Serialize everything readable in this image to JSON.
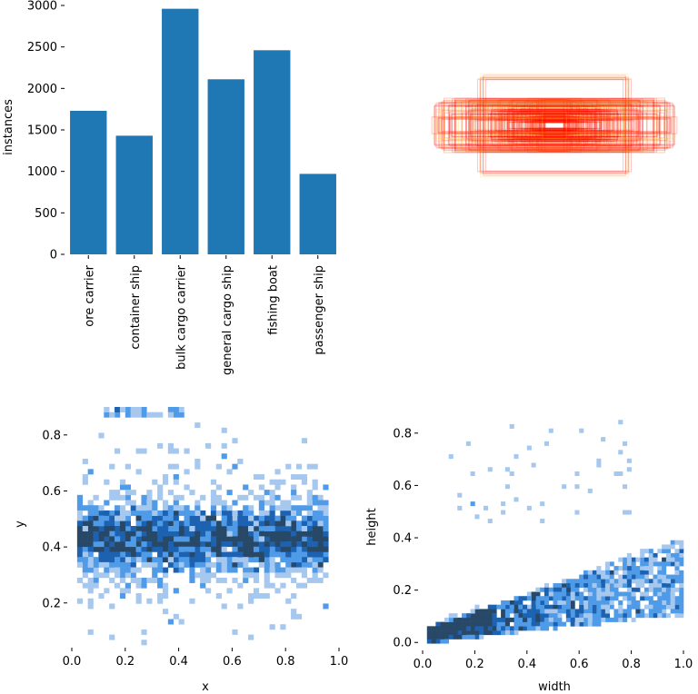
{
  "colors": {
    "bar": "#1f77b4",
    "hist_light": "#a6c8ee",
    "hist_mid": "#4f9be8",
    "hist_dark": "#1c62b0",
    "hist_darkest": "#284868"
  },
  "chart_data": [
    {
      "id": "labels",
      "type": "bar",
      "categories": [
        "ore carrier",
        "container ship",
        "bulk cargo carrier",
        "general cargo ship",
        "fishing boat",
        "passenger ship"
      ],
      "values": [
        1730,
        1430,
        2960,
        2110,
        2460,
        970
      ],
      "ylabel": "instances",
      "xlabel": "",
      "ylim": [
        0,
        3000
      ],
      "yticks": [
        0,
        500,
        1000,
        1500,
        2000,
        2500,
        3000
      ]
    },
    {
      "id": "box-overlay",
      "type": "other",
      "description_colors": [
        "#ff0000",
        "#ff8c00",
        "#ffd700"
      ]
    },
    {
      "id": "xy-density",
      "type": "heatmap",
      "xlabel": "x",
      "ylabel": "y",
      "xlim": [
        0,
        1
      ],
      "ylim": [
        0.05,
        0.9
      ],
      "xticks": [
        "0.0",
        "0.2",
        "0.4",
        "0.6",
        "0.8",
        "1.0"
      ],
      "yticks": [
        "0.2",
        "0.4",
        "0.6",
        "0.8"
      ],
      "density_center": {
        "x": 0.5,
        "y": 0.43
      },
      "density_spread": {
        "x": 0.45,
        "y": 0.1
      }
    },
    {
      "id": "wh-density",
      "type": "heatmap",
      "xlabel": "width",
      "ylabel": "height",
      "xlim": [
        0,
        1
      ],
      "ylim": [
        -0.02,
        0.9
      ],
      "xticks": [
        "0.0",
        "0.2",
        "0.4",
        "0.6",
        "0.8",
        "1.0"
      ],
      "yticks": [
        "0.0",
        "0.2",
        "0.4",
        "0.6",
        "0.8"
      ],
      "trend": {
        "slope": 0.22,
        "intercept": 0.02
      }
    }
  ]
}
